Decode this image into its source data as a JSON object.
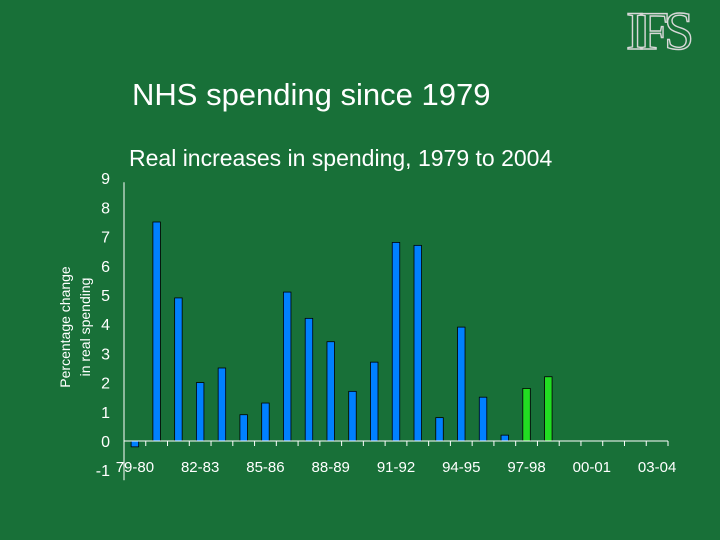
{
  "logo_text": "IFS",
  "title": "NHS spending since 1979",
  "chart_data": {
    "type": "bar",
    "title": "Real increases in spending, 1979 to 2004",
    "ylabel": [
      "Percentage change",
      "in real spending"
    ],
    "xlabel": "",
    "ylim": [
      -1,
      9
    ],
    "yticks": [
      9,
      8,
      7,
      6,
      5,
      4,
      3,
      2,
      1,
      0,
      -1
    ],
    "grid": false,
    "categories": [
      "79-80",
      "80-81",
      "81-82",
      "82-83",
      "83-84",
      "84-85",
      "85-86",
      "86-87",
      "87-88",
      "88-89",
      "89-90",
      "90-91",
      "91-92",
      "92-93",
      "93-94",
      "94-95",
      "95-96",
      "96-97",
      "97-98",
      "98-99",
      "99-00",
      "00-01",
      "01-02",
      "02-03",
      "03-04"
    ],
    "tick_labels": [
      "79-80",
      "82-83",
      "85-86",
      "88-89",
      "91-92",
      "94-95",
      "97-98",
      "00-01",
      "03-04"
    ],
    "values": [
      -0.2,
      7.5,
      4.9,
      2.0,
      2.5,
      0.9,
      1.3,
      5.1,
      4.2,
      3.4,
      1.7,
      2.7,
      6.8,
      6.7,
      0.8,
      3.9,
      1.5,
      0.2,
      1.8,
      2.2,
      null,
      null,
      null,
      null,
      null
    ],
    "bar_colors": [
      "#0080ff",
      "#0080ff",
      "#0080ff",
      "#0080ff",
      "#0080ff",
      "#0080ff",
      "#0080ff",
      "#0080ff",
      "#0080ff",
      "#0080ff",
      "#0080ff",
      "#0080ff",
      "#0080ff",
      "#0080ff",
      "#0080ff",
      "#0080ff",
      "#0080ff",
      "#0080ff",
      "#22dd22",
      "#22dd22",
      "#0080ff",
      "#0080ff",
      "#0080ff",
      "#0080ff",
      "#0080ff"
    ],
    "axis_color": "#ffffff",
    "bar_edge_color": "#000000"
  }
}
